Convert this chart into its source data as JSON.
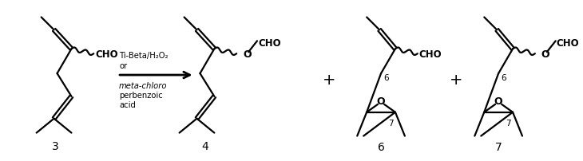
{
  "bg_color": "#ffffff",
  "text_color": "#000000",
  "compound3_label": "3",
  "compound4_label": "4",
  "compound6_label": "6",
  "compound7_label": "7",
  "reagent_line1": "Ti-Beta/H₂O₂",
  "reagent_line2": "or",
  "reagent_line3": "meta-chloro",
  "reagent_line4": "perbenzoic",
  "reagent_line5": "acid",
  "plus": "+",
  "CHO": "CHO",
  "O_label": "O",
  "figsize": [
    7.3,
    2.03
  ],
  "dpi": 100
}
